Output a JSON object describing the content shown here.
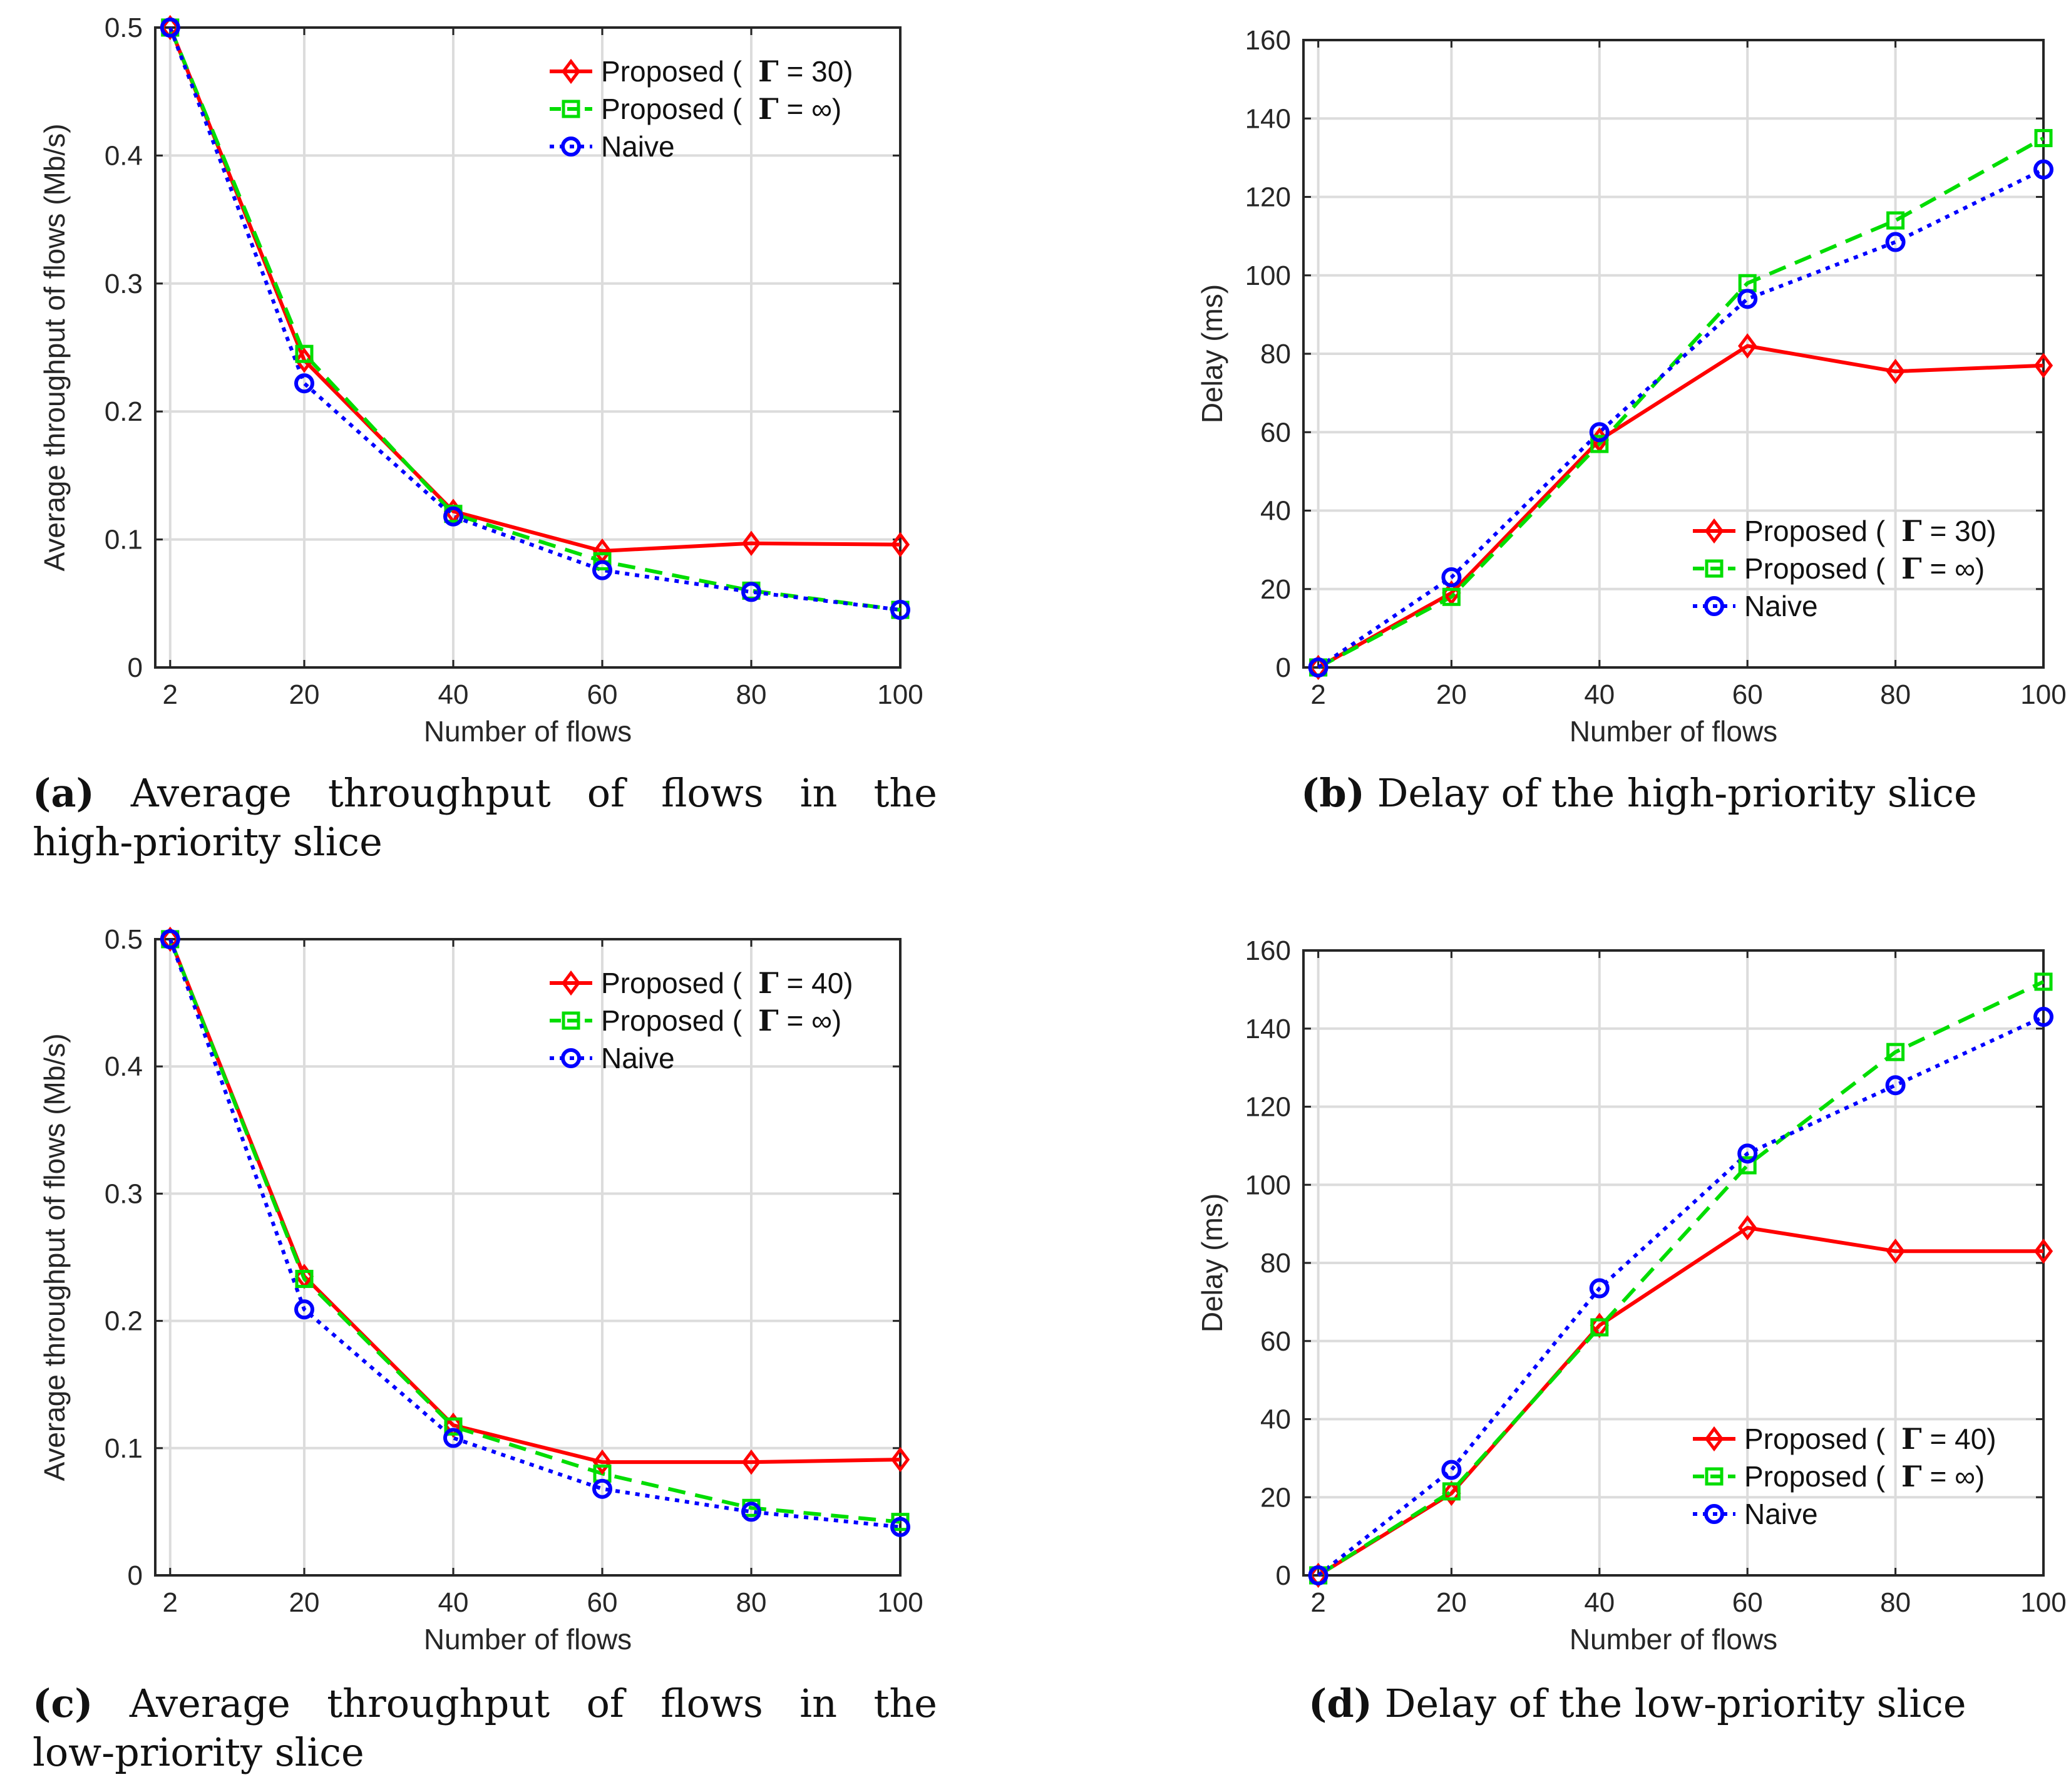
{
  "chart_data": [
    {
      "id": "a",
      "type": "line",
      "xlabel": "Number of flows",
      "ylabel": "Average throughput of flows (Mb/s)",
      "x": [
        2,
        20,
        40,
        60,
        80,
        100
      ],
      "xticks": [
        2,
        20,
        40,
        60,
        80,
        100
      ],
      "xlim": [
        0,
        100
      ],
      "ylim": [
        0,
        0.5
      ],
      "yticks": [
        0,
        0.1,
        0.2,
        0.3,
        0.4,
        0.5
      ],
      "ytick_labels": [
        "0",
        "0.1",
        "0.2",
        "0.3",
        "0.4",
        "0.5"
      ],
      "grid": true,
      "legend_position": "top-right",
      "series": [
        {
          "name": "Proposed ( Γ = 30)",
          "label_prefix": "Proposed (",
          "gamma": "Γ",
          "label_suffix": " = 30)",
          "color": "#ff0000",
          "style": "solid",
          "marker": "diamond",
          "values": [
            0.5,
            0.24,
            0.122,
            0.091,
            0.097,
            0.096
          ]
        },
        {
          "name": "Proposed ( Γ = ∞)",
          "label_prefix": "Proposed (",
          "gamma": "Γ",
          "label_suffix": " = ∞)",
          "color": "#00dd00",
          "style": "dashed",
          "marker": "square",
          "values": [
            0.5,
            0.245,
            0.12,
            0.083,
            0.06,
            0.045
          ]
        },
        {
          "name": "Naive",
          "label_prefix": "Naive",
          "gamma": "",
          "label_suffix": "",
          "color": "#0000ff",
          "style": "dotted",
          "marker": "circle",
          "values": [
            0.5,
            0.222,
            0.118,
            0.076,
            0.059,
            0.045
          ]
        }
      ],
      "caption_letter": "(a)",
      "caption_line1": "Average throughput of flows in the",
      "caption_line2": "high-priority slice"
    },
    {
      "id": "b",
      "type": "line",
      "xlabel": "Number of flows",
      "ylabel": "Delay (ms)",
      "x": [
        2,
        20,
        40,
        60,
        80,
        100
      ],
      "xticks": [
        2,
        20,
        40,
        60,
        80,
        100
      ],
      "xlim": [
        0,
        100
      ],
      "ylim": [
        0,
        160
      ],
      "yticks": [
        0,
        20,
        40,
        60,
        80,
        100,
        120,
        140,
        160
      ],
      "ytick_labels": [
        "0",
        "20",
        "40",
        "60",
        "80",
        "100",
        "120",
        "140",
        "160"
      ],
      "grid": true,
      "legend_position": "bottom-right",
      "series": [
        {
          "name": "Proposed ( Γ = 30)",
          "label_prefix": "Proposed (",
          "gamma": "Γ",
          "label_suffix": " = 30)",
          "color": "#ff0000",
          "style": "solid",
          "marker": "diamond",
          "values": [
            0,
            19,
            58,
            82,
            75.5,
            77
          ]
        },
        {
          "name": "Proposed ( Γ = ∞)",
          "label_prefix": "Proposed (",
          "gamma": "Γ",
          "label_suffix": " = ∞)",
          "color": "#00dd00",
          "style": "dashed",
          "marker": "square",
          "values": [
            0,
            18,
            57,
            98,
            114,
            135
          ]
        },
        {
          "name": "Naive",
          "label_prefix": "Naive",
          "gamma": "",
          "label_suffix": "",
          "color": "#0000ff",
          "style": "dotted",
          "marker": "circle",
          "values": [
            0,
            23,
            60,
            94,
            108.5,
            127
          ]
        }
      ],
      "caption_letter": "(b)",
      "caption_line1": "Delay of the high-priority slice",
      "caption_line2": ""
    },
    {
      "id": "c",
      "type": "line",
      "xlabel": "Number of flows",
      "ylabel": "Average throughput of flows (Mb/s)",
      "x": [
        2,
        20,
        40,
        60,
        80,
        100
      ],
      "xticks": [
        2,
        20,
        40,
        60,
        80,
        100
      ],
      "xlim": [
        0,
        100
      ],
      "ylim": [
        0,
        0.5
      ],
      "yticks": [
        0,
        0.1,
        0.2,
        0.3,
        0.4,
        0.5
      ],
      "ytick_labels": [
        "0",
        "0.1",
        "0.2",
        "0.3",
        "0.4",
        "0.5"
      ],
      "grid": true,
      "legend_position": "top-right",
      "series": [
        {
          "name": "Proposed ( Γ = 40)",
          "label_prefix": "Proposed (",
          "gamma": "Γ",
          "label_suffix": " = 40)",
          "color": "#ff0000",
          "style": "solid",
          "marker": "diamond",
          "values": [
            0.5,
            0.235,
            0.118,
            0.089,
            0.089,
            0.091
          ]
        },
        {
          "name": "Proposed ( Γ = ∞)",
          "label_prefix": "Proposed (",
          "gamma": "Γ",
          "label_suffix": " = ∞)",
          "color": "#00dd00",
          "style": "dashed",
          "marker": "square",
          "values": [
            0.5,
            0.233,
            0.117,
            0.08,
            0.053,
            0.042
          ]
        },
        {
          "name": "Naive",
          "label_prefix": "Naive",
          "gamma": "",
          "label_suffix": "",
          "color": "#0000ff",
          "style": "dotted",
          "marker": "circle",
          "values": [
            0.5,
            0.209,
            0.108,
            0.068,
            0.05,
            0.038
          ]
        }
      ],
      "caption_letter": "(c)",
      "caption_line1": "Average throughput of flows in the",
      "caption_line2": "low-priority slice"
    },
    {
      "id": "d",
      "type": "line",
      "xlabel": "Number of flows",
      "ylabel": "Delay (ms)",
      "x": [
        2,
        20,
        40,
        60,
        80,
        100
      ],
      "xticks": [
        2,
        20,
        40,
        60,
        80,
        100
      ],
      "xlim": [
        0,
        100
      ],
      "ylim": [
        0,
        160
      ],
      "yticks": [
        0,
        20,
        40,
        60,
        80,
        100,
        120,
        140,
        160
      ],
      "ytick_labels": [
        "0",
        "20",
        "40",
        "60",
        "80",
        "100",
        "120",
        "140",
        "160"
      ],
      "grid": true,
      "legend_position": "bottom-right",
      "series": [
        {
          "name": "Proposed ( Γ = 40)",
          "label_prefix": "Proposed (",
          "gamma": "Γ",
          "label_suffix": " = 40)",
          "color": "#ff0000",
          "style": "solid",
          "marker": "diamond",
          "values": [
            0,
            21,
            64,
            89,
            83,
            83
          ]
        },
        {
          "name": "Proposed ( Γ = ∞)",
          "label_prefix": "Proposed (",
          "gamma": "Γ",
          "label_suffix": " = ∞)",
          "color": "#00dd00",
          "style": "dashed",
          "marker": "square",
          "values": [
            0,
            21.5,
            63.5,
            105,
            134,
            152
          ]
        },
        {
          "name": "Naive",
          "label_prefix": "Naive",
          "gamma": "",
          "label_suffix": "",
          "color": "#0000ff",
          "style": "dotted",
          "marker": "circle",
          "values": [
            0,
            27,
            73.5,
            108,
            125.5,
            143
          ]
        }
      ],
      "caption_letter": "(d)",
      "caption_line1": "Delay of the low-priority slice",
      "caption_line2": ""
    }
  ]
}
